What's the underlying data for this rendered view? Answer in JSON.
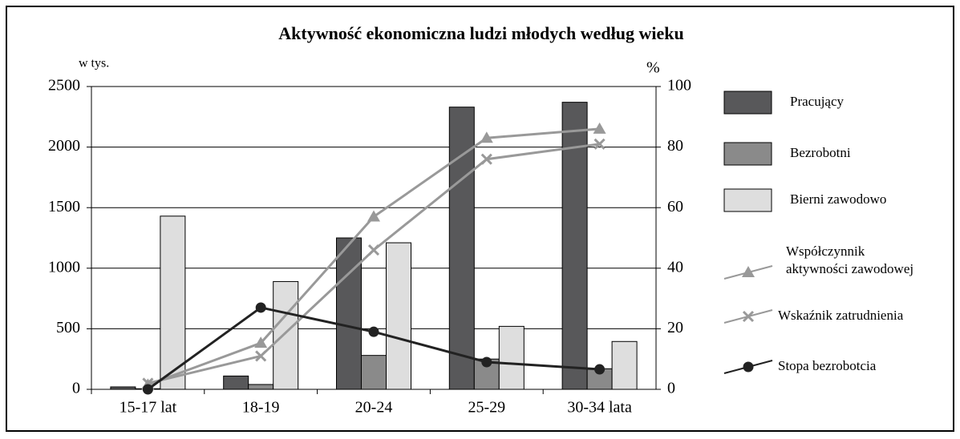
{
  "chart_data": {
    "type": "bar",
    "title": "Aktywność ekonomiczna ludzi młodych według wieku",
    "y_label": "w tys.",
    "y2_label": "%",
    "categories": [
      "15-17 lat",
      "18-19",
      "20-24",
      "25-29",
      "30-34 lata"
    ],
    "ylim": [
      0,
      2500
    ],
    "yticks": [
      0,
      500,
      1000,
      1500,
      2000,
      2500
    ],
    "y2lim": [
      0,
      100
    ],
    "y2ticks": [
      0,
      20,
      40,
      60,
      80,
      100
    ],
    "grid": true,
    "legend": "right",
    "series": [
      {
        "name": "Pracujący",
        "type": "bar",
        "color": "#58585a",
        "values": [
          20,
          110,
          1250,
          2330,
          2370
        ]
      },
      {
        "name": "Bezrobotni",
        "type": "bar",
        "color": "#8a8a8a",
        "values": [
          5,
          40,
          280,
          250,
          170
        ]
      },
      {
        "name": "Bierni zawodowo",
        "type": "bar",
        "color": "#dedede",
        "values": [
          1430,
          890,
          1210,
          520,
          395
        ]
      },
      {
        "name": "Współczynnik aktywności zawodowej",
        "type": "line",
        "axis": "y2",
        "marker": "triangle",
        "color": "#999999",
        "values": [
          1.5,
          15.3,
          57,
          83,
          86
        ]
      },
      {
        "name": "Wskaźnik zatrudnienia",
        "type": "line",
        "axis": "y2",
        "marker": "x",
        "color": "#999999",
        "values": [
          2,
          11,
          46,
          76,
          81
        ]
      },
      {
        "name": "Stopa bezrobotcia",
        "type": "line",
        "axis": "y2",
        "marker": "circle",
        "color": "#222222",
        "values": [
          0,
          27,
          19,
          9,
          6.6
        ]
      }
    ]
  }
}
